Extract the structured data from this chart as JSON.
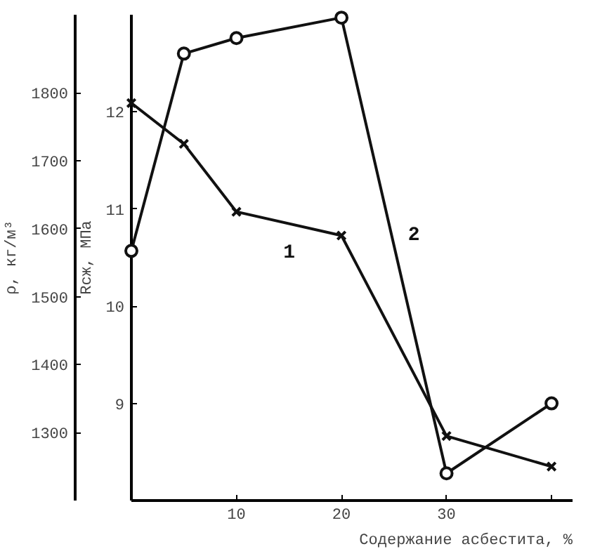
{
  "chart_data": {
    "type": "line",
    "xlabel": "Содержание асбестита, %",
    "ylabel": "ρ, кг/м³",
    "y2label": "Rсж, МПа",
    "xlim": [
      0,
      42
    ],
    "xticks": [
      10,
      20,
      30,
      {
        "value": 40,
        "label": null
      }
    ],
    "ylim": [
      1200,
      1915
    ],
    "yticks": [
      1300,
      1400,
      1500,
      1600,
      1700,
      1800
    ],
    "y2lim": [
      8,
      13
    ],
    "y2ticks": [
      9,
      10,
      11,
      12
    ],
    "grid": false,
    "legend": false,
    "line_style": "solid",
    "series": [
      {
        "name": "1",
        "color": "#111111",
        "marker": "cross",
        "x": [
          0,
          5,
          10,
          20,
          30,
          40
        ],
        "values": [
          1785,
          1725,
          1625,
          1590,
          1295,
          1250
        ]
      },
      {
        "name": "2",
        "color": "#111111",
        "axis": "y2",
        "marker": "circle",
        "x": [
          0,
          5,
          10,
          20,
          30,
          40
        ],
        "values": [
          10.57,
          12.6,
          12.76,
          12.97,
          8.28,
          9.0
        ]
      }
    ]
  }
}
